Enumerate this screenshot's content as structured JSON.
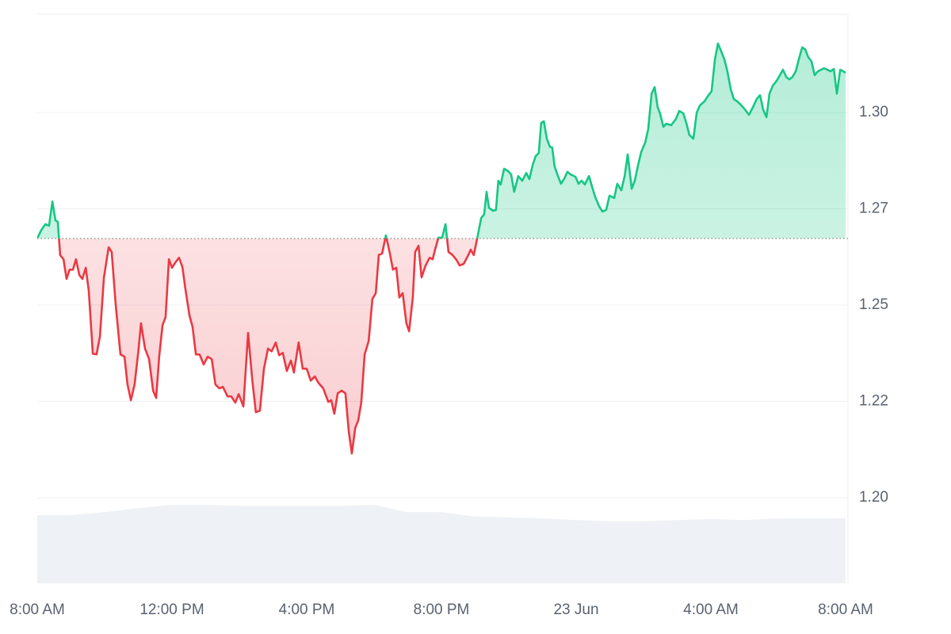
{
  "chart_data": {
    "type": "line",
    "baseline": 1.2673,
    "up_color": "#16c784",
    "down_color": "#ea3943",
    "grid": true,
    "xlim": [
      0,
      24.07
    ],
    "xticks": [
      {
        "value": 0,
        "label": "8:00 AM"
      },
      {
        "value": 4,
        "label": "12:00 PM"
      },
      {
        "value": 8,
        "label": "4:00 PM"
      },
      {
        "value": 12,
        "label": "8:00 PM"
      },
      {
        "value": 16,
        "label": "23 Jun"
      },
      {
        "value": 20,
        "label": "4:00 AM"
      },
      {
        "value": 24,
        "label": "8:00 AM"
      }
    ],
    "ylim": [
      1.1778,
      1.3255
    ],
    "yticks": [
      {
        "value": 1.2,
        "label": "1.20"
      },
      {
        "value": 1.225,
        "label": "1.22"
      },
      {
        "value": 1.25,
        "label": "1.25"
      },
      {
        "value": 1.275,
        "label": "1.27"
      },
      {
        "value": 1.3,
        "label": "1.30"
      }
    ],
    "x": [
      0,
      0.12,
      0.24,
      0.35,
      0.45,
      0.54,
      0.61,
      0.68,
      0.78,
      0.87,
      0.96,
      1.06,
      1.15,
      1.25,
      1.34,
      1.44,
      1.53,
      1.65,
      1.76,
      1.86,
      1.98,
      2.12,
      2.21,
      2.33,
      2.47,
      2.59,
      2.68,
      2.78,
      2.89,
      3.01,
      3.08,
      3.2,
      3.32,
      3.44,
      3.53,
      3.62,
      3.72,
      3.81,
      3.91,
      4.0,
      4.12,
      4.21,
      4.31,
      4.4,
      4.52,
      4.61,
      4.71,
      4.82,
      4.94,
      5.06,
      5.18,
      5.29,
      5.41,
      5.51,
      5.65,
      5.76,
      5.88,
      5.98,
      6.12,
      6.26,
      6.38,
      6.49,
      6.61,
      6.73,
      6.85,
      6.96,
      7.08,
      7.18,
      7.29,
      7.41,
      7.53,
      7.62,
      7.76,
      7.88,
      8.0,
      8.12,
      8.24,
      8.35,
      8.49,
      8.64,
      8.73,
      8.82,
      8.92,
      9.04,
      9.15,
      9.25,
      9.34,
      9.44,
      9.53,
      9.62,
      9.72,
      9.84,
      9.95,
      10.05,
      10.14,
      10.24,
      10.35,
      10.47,
      10.56,
      10.66,
      10.75,
      10.85,
      10.96,
      11.04,
      11.15,
      11.22,
      11.32,
      11.41,
      11.53,
      11.65,
      11.74,
      11.81,
      11.91,
      12.02,
      12.12,
      12.21,
      12.33,
      12.45,
      12.54,
      12.66,
      12.78,
      12.87,
      12.96,
      13.08,
      13.18,
      13.27,
      13.34,
      13.41,
      13.53,
      13.62,
      13.69,
      13.76,
      13.86,
      13.98,
      14.07,
      14.16,
      14.28,
      14.4,
      14.52,
      14.61,
      14.71,
      14.8,
      14.89,
      14.96,
      15.04,
      15.13,
      15.22,
      15.29,
      15.36,
      15.46,
      15.55,
      15.65,
      15.74,
      15.84,
      15.98,
      16.07,
      16.16,
      16.26,
      16.38,
      16.47,
      16.56,
      16.68,
      16.78,
      16.89,
      16.99,
      17.13,
      17.22,
      17.34,
      17.44,
      17.53,
      17.65,
      17.74,
      17.84,
      17.93,
      18.05,
      18.14,
      18.24,
      18.33,
      18.42,
      18.49,
      18.59,
      18.68,
      18.82,
      18.96,
      19.06,
      19.18,
      19.27,
      19.36,
      19.48,
      19.58,
      19.67,
      19.81,
      19.93,
      20.02,
      20.12,
      20.21,
      20.31,
      20.4,
      20.49,
      20.59,
      20.68,
      20.78,
      20.89,
      21.01,
      21.13,
      21.25,
      21.36,
      21.46,
      21.55,
      21.65,
      21.74,
      21.84,
      21.95,
      22.05,
      22.14,
      22.24,
      22.33,
      22.42,
      22.52,
      22.61,
      22.71,
      22.8,
      22.89,
      22.99,
      23.08,
      23.18,
      23.27,
      23.36,
      23.46,
      23.55,
      23.65,
      23.74,
      23.84,
      23.93,
      24.0
    ],
    "series": [
      {
        "color": "#16c784",
        "values": [
          1.2673,
          1.2695,
          1.271,
          1.2706,
          1.2769,
          1.272,
          1.2716,
          1.263,
          1.2619,
          1.2568,
          1.2592,
          1.2592,
          1.2619,
          1.2578,
          1.2568,
          1.2597,
          1.2537,
          1.2374,
          1.2372,
          1.2418,
          1.2572,
          1.265,
          1.2638,
          1.25,
          1.2372,
          1.2366,
          1.2294,
          1.2253,
          1.2294,
          1.2387,
          1.2453,
          1.2387,
          1.236,
          1.2278,
          1.2259,
          1.2366,
          1.2448,
          1.2469,
          1.2619,
          1.2597,
          1.2613,
          1.2623,
          1.2599,
          1.2541,
          1.2473,
          1.2444,
          1.2372,
          1.2372,
          1.2346,
          1.2366,
          1.236,
          1.2294,
          1.2284,
          1.2288,
          1.2263,
          1.2263,
          1.2247,
          1.2269,
          1.2237,
          1.2428,
          1.2309,
          1.2222,
          1.2226,
          1.2335,
          1.2387,
          1.238,
          1.2403,
          1.237,
          1.2376,
          1.2329,
          1.2356,
          1.2325,
          1.2403,
          1.2335,
          1.2335,
          1.2304,
          1.2315,
          1.2298,
          1.2284,
          1.2249,
          1.2253,
          1.2218,
          1.2271,
          1.2278,
          1.2271,
          1.2171,
          1.2115,
          1.2181,
          1.2201,
          1.2247,
          1.2372,
          1.2407,
          1.2516,
          1.2531,
          1.263,
          1.2634,
          1.2681,
          1.2634,
          1.2592,
          1.2597,
          1.252,
          1.2531,
          1.2453,
          1.2432,
          1.252,
          1.2638,
          1.2654,
          1.2572,
          1.2603,
          1.2623,
          1.2619,
          1.2644,
          1.2675,
          1.2675,
          1.271,
          1.2638,
          1.263,
          1.2617,
          1.2603,
          1.2607,
          1.2627,
          1.2644,
          1.263,
          1.2681,
          1.2726,
          1.2736,
          1.2794,
          1.2753,
          1.2745,
          1.2747,
          1.2823,
          1.2813,
          1.2854,
          1.2848,
          1.2839,
          1.2794,
          1.2835,
          1.2823,
          1.2843,
          1.2827,
          1.2864,
          1.2887,
          1.2895,
          1.2973,
          1.2977,
          1.2932,
          1.2911,
          1.2909,
          1.286,
          1.2835,
          1.2815,
          1.2829,
          1.2846,
          1.2839,
          1.2833,
          1.2815,
          1.2823,
          1.2813,
          1.2835,
          1.2808,
          1.2782,
          1.2757,
          1.2743,
          1.2747,
          1.2784,
          1.2778,
          1.2815,
          1.2798,
          1.2835,
          1.2891,
          1.2802,
          1.2823,
          1.2864,
          1.2897,
          1.2922,
          1.2957,
          1.3049,
          1.3066,
          1.3014,
          1.2998,
          1.2963,
          1.2971,
          1.2967,
          1.2983,
          1.3004,
          1.2998,
          1.2973,
          1.2942,
          1.2932,
          1.3,
          1.3018,
          1.3029,
          1.3045,
          1.3055,
          1.3138,
          1.3179,
          1.3158,
          1.3138,
          1.3107,
          1.306,
          1.3035,
          1.3029,
          1.302,
          1.3008,
          1.2994,
          1.3014,
          1.3035,
          1.3045,
          1.3008,
          1.2988,
          1.3049,
          1.307,
          1.3082,
          1.3097,
          1.3111,
          1.3092,
          1.3086,
          1.3092,
          1.3107,
          1.3138,
          1.3169,
          1.3164,
          1.3144,
          1.3132,
          1.3097,
          1.3107,
          1.3111,
          1.3115,
          1.3111,
          1.3107,
          1.3113,
          1.3049,
          1.3111,
          1.3107,
          1.3103
        ]
      }
    ],
    "volume": {
      "color": "#eef1f5",
      "ylim": [
        0,
        100
      ],
      "x": [
        0,
        1,
        2,
        3,
        4,
        5,
        6,
        7,
        8,
        9,
        10,
        11,
        12,
        13,
        14,
        15,
        16,
        17,
        18,
        19,
        20,
        21,
        22,
        23,
        24
      ],
      "values": [
        12,
        12,
        12.5,
        13.2,
        13.8,
        13.8,
        13.6,
        13.6,
        13.6,
        13.6,
        13.8,
        12.5,
        12.5,
        11.7,
        11.6,
        11.4,
        11.1,
        10.9,
        10.9,
        11.1,
        11.3,
        11.1,
        11.4,
        11.4,
        11.4
      ]
    }
  }
}
